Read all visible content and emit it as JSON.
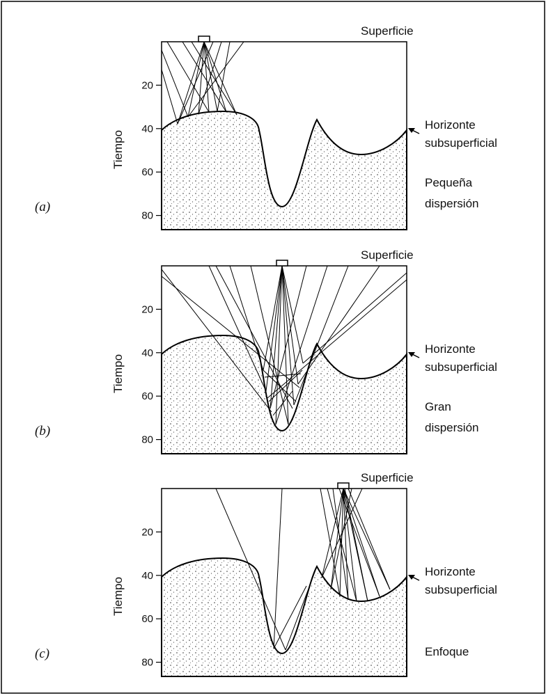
{
  "panels": [
    {
      "label": "(a)",
      "surface": "Superficie",
      "horizon": [
        "Horizonte",
        "subsuperficial"
      ],
      "axis_title": "Tiempo",
      "ticks": [
        20,
        40,
        60,
        80
      ],
      "caption": [
        "Pequeña",
        "dispersión"
      ]
    },
    {
      "label": "(b)",
      "surface": "Superficie",
      "horizon": [
        "Horizonte",
        "subsuperficial"
      ],
      "axis_title": "Tiempo",
      "ticks": [
        20,
        40,
        60,
        80
      ],
      "caption": [
        "Gran",
        "dispersión"
      ]
    },
    {
      "label": "(c)",
      "surface": "Superficie",
      "horizon": [
        "Horizonte",
        "subsuperficial"
      ],
      "axis_title": "Tiempo",
      "ticks": [
        20,
        40,
        60,
        80
      ],
      "caption": [
        "Enfoque"
      ]
    }
  ]
}
